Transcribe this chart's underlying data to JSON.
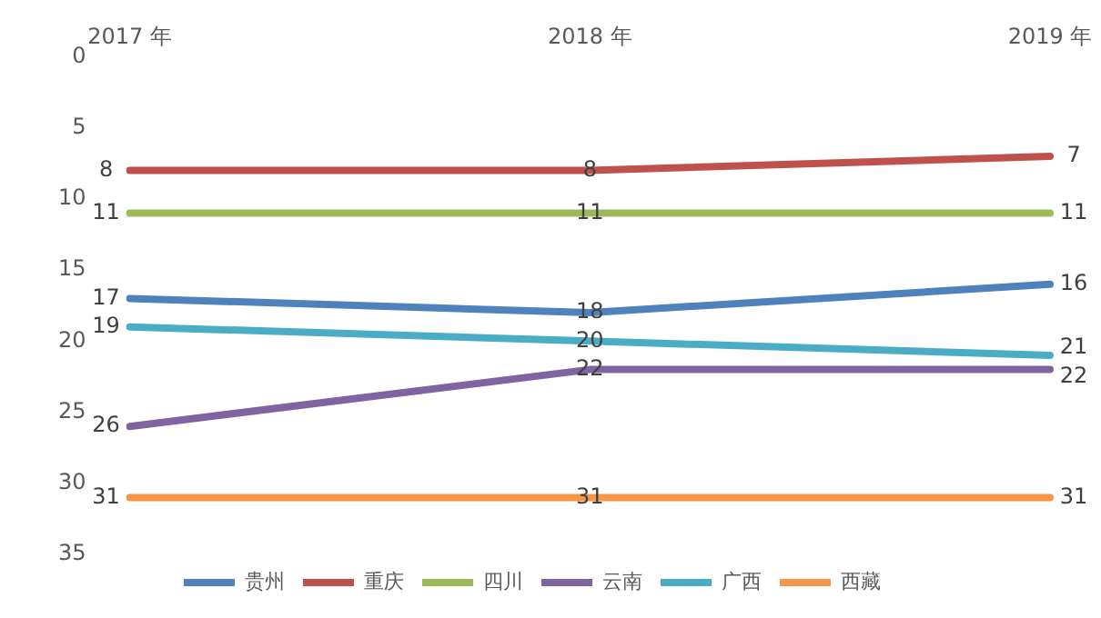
{
  "chart_data": {
    "type": "line",
    "categories": [
      "2017 年",
      "2018 年",
      "2019 年"
    ],
    "ylim": [
      35,
      0
    ],
    "yticks": [
      0,
      5,
      10,
      15,
      20,
      25,
      30,
      35
    ],
    "grid": false,
    "legend": "bottom",
    "marker": "none",
    "line_style": "solid",
    "data_labels": true,
    "series": [
      {
        "name": "贵州",
        "color": "#4f81bd",
        "values": [
          17,
          18,
          16
        ]
      },
      {
        "name": "重庆",
        "color": "#c0504d",
        "values": [
          8,
          8,
          7
        ]
      },
      {
        "name": "四川",
        "color": "#9bbb59",
        "values": [
          11,
          11,
          11
        ]
      },
      {
        "name": "云南",
        "color": "#8064a2",
        "values": [
          26,
          22,
          22
        ]
      },
      {
        "name": "广西",
        "color": "#4bacc6",
        "values": [
          19,
          20,
          21
        ]
      },
      {
        "name": "西藏",
        "color": "#f79646",
        "values": [
          31,
          31,
          31
        ]
      }
    ]
  }
}
